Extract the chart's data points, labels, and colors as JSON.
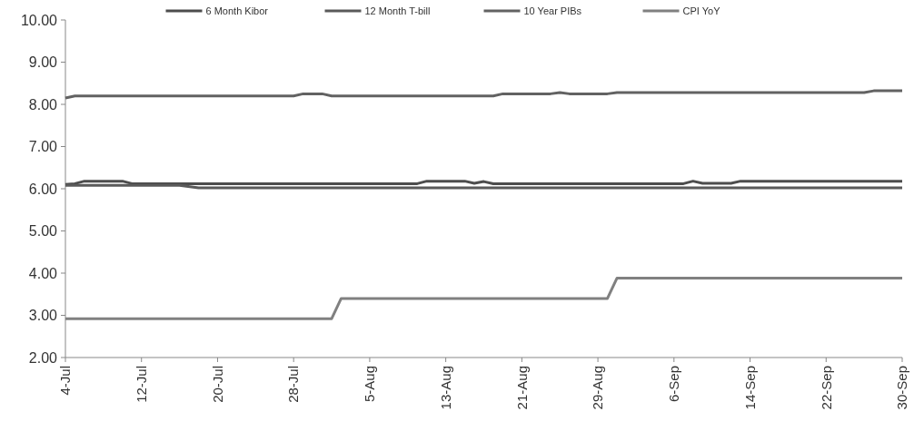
{
  "chart_data": {
    "type": "line",
    "legend": "top",
    "marker": "none",
    "line_style": "solid",
    "grid": false,
    "xlim": [
      "--07-04",
      "--09-30"
    ],
    "xticks": [
      {
        "value": "--07-04",
        "label": "4-Jul"
      },
      {
        "value": "--07-12",
        "label": "12-Jul"
      },
      {
        "value": "--07-20",
        "label": "20-Jul"
      },
      {
        "value": "--07-28",
        "label": "28-Jul"
      },
      {
        "value": "--08-05",
        "label": "5-Aug"
      },
      {
        "value": "--08-13",
        "label": "13-Aug"
      },
      {
        "value": "--08-21",
        "label": "21-Aug"
      },
      {
        "value": "--08-29",
        "label": "29-Aug"
      },
      {
        "value": "--09-06",
        "label": "6-Sep"
      },
      {
        "value": "--09-14",
        "label": "14-Sep"
      },
      {
        "value": "--09-22",
        "label": "22-Sep"
      },
      {
        "value": "--09-30",
        "label": "30-Sep"
      }
    ],
    "ylim": [
      2,
      10
    ],
    "yticks": [
      {
        "value": 2,
        "label": "2.00"
      },
      {
        "value": 3,
        "label": "3.00"
      },
      {
        "value": 4,
        "label": "4.00"
      },
      {
        "value": 5,
        "label": "5.00"
      },
      {
        "value": 6,
        "label": "6.00"
      },
      {
        "value": 7,
        "label": "7.00"
      },
      {
        "value": 8,
        "label": "8.00"
      },
      {
        "value": 9,
        "label": "9.00"
      },
      {
        "value": 10,
        "label": "10.00"
      }
    ],
    "series": [
      {
        "name": "6 Month Kibor",
        "color": "#4d4d4d",
        "x": [
          "--07-04",
          "--07-05",
          "--07-06",
          "--07-10",
          "--07-11",
          "--08-10",
          "--08-11",
          "--08-15",
          "--08-16",
          "--08-17",
          "--08-18",
          "--09-07",
          "--09-08",
          "--09-09",
          "--09-12",
          "--09-13",
          "--09-30"
        ],
        "values": [
          6.1,
          6.12,
          6.18,
          6.18,
          6.12,
          6.12,
          6.18,
          6.18,
          6.13,
          6.17,
          6.12,
          6.12,
          6.18,
          6.13,
          6.13,
          6.18,
          6.18
        ]
      },
      {
        "name": "12 Month T-bill",
        "color": "#5a5a5a",
        "x": [
          "--07-04",
          "--07-16",
          "--07-18",
          "--09-30"
        ],
        "values": [
          6.08,
          6.08,
          6.02,
          6.02
        ]
      },
      {
        "name": "10 Year PIBs",
        "color": "#626262",
        "x": [
          "--07-04",
          "--07-05",
          "--07-28",
          "--07-29",
          "--07-31",
          "--08-01",
          "--08-18",
          "--08-19",
          "--08-24",
          "--08-25",
          "--08-26",
          "--08-30",
          "--08-31",
          "--09-26",
          "--09-27",
          "--09-30"
        ],
        "values": [
          8.15,
          8.2,
          8.2,
          8.25,
          8.25,
          8.2,
          8.2,
          8.25,
          8.25,
          8.28,
          8.25,
          8.25,
          8.28,
          8.28,
          8.32,
          8.32
        ]
      },
      {
        "name": "CPI YoY",
        "color": "#808080",
        "x": [
          "--07-04",
          "--08-01",
          "--08-02",
          "--08-30",
          "--08-31",
          "--09-30"
        ],
        "values": [
          2.92,
          2.92,
          3.4,
          3.4,
          3.88,
          3.88
        ]
      }
    ]
  }
}
